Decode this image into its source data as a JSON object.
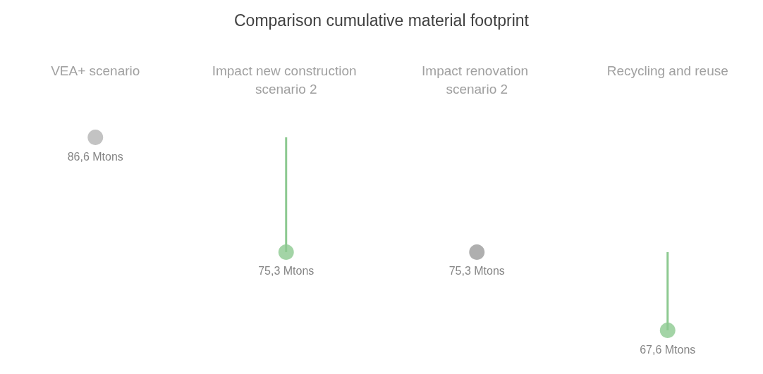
{
  "chart_data": {
    "type": "lollipop",
    "title": "Comparison cumulative material footprint",
    "categories": [
      "VEA+ scenario",
      "Impact new construction scenario 2",
      "Impact renovation scenario 2",
      "Recycling and reuse"
    ],
    "values": [
      86.6,
      75.3,
      75.3,
      67.6
    ],
    "colors": [
      "#b4b4b4",
      "#8cc990",
      "#9b9b9b",
      "#8cc990"
    ],
    "value_labels": [
      "86,6 Mtons",
      "75,3 Mtons",
      "75,3 Mtons",
      "67,6 Mtons"
    ],
    "marker": "circle"
  }
}
